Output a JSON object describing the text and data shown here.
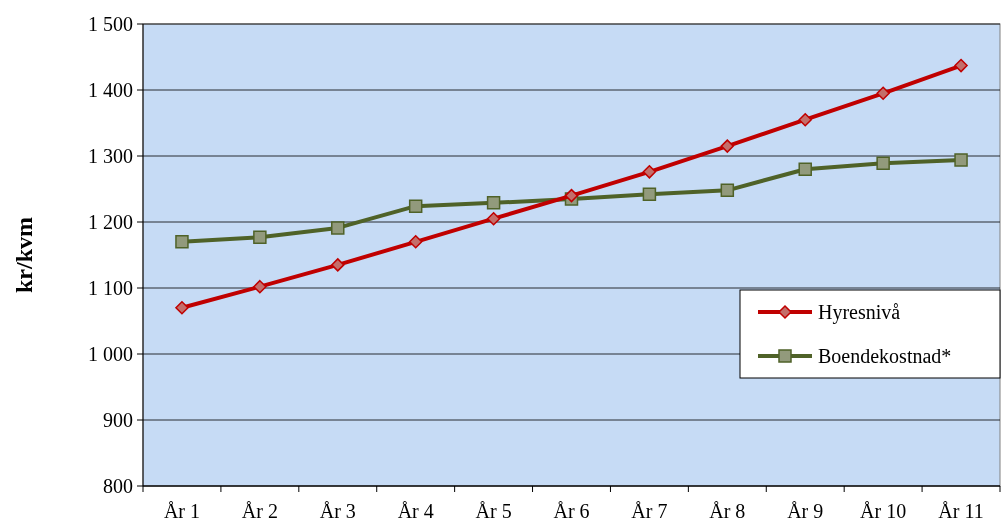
{
  "chart_data": {
    "type": "line",
    "ylabel": "kr/kvm",
    "categories": [
      "År 1",
      "År 2",
      "År 3",
      "År 4",
      "År 5",
      "År 6",
      "År 7",
      "År 8",
      "År 9",
      "År 10",
      "År 11"
    ],
    "series": [
      {
        "name": "Hyresnivå",
        "color": "#c00000",
        "marker": "diamond",
        "values": [
          1070,
          1102,
          1135,
          1170,
          1205,
          1240,
          1276,
          1315,
          1355,
          1395,
          1437
        ]
      },
      {
        "name": "Boendekostnad*",
        "color": "#4f6228",
        "marker": "square",
        "values": [
          1170,
          1177,
          1191,
          1224,
          1229,
          1235,
          1242,
          1248,
          1280,
          1289,
          1294
        ]
      }
    ],
    "ylim": [
      800,
      1500
    ],
    "yticks": [
      800,
      900,
      {
        "value": 1000,
        "label": "1 000"
      },
      {
        "value": 1100,
        "label": "1 100"
      },
      {
        "value": 1200,
        "label": "1 200"
      },
      {
        "value": 1300,
        "label": "1 300"
      },
      {
        "value": 1400,
        "label": "1 400"
      },
      {
        "value": 1500,
        "label": "1 500"
      }
    ],
    "grid": "y",
    "legend": "right"
  }
}
